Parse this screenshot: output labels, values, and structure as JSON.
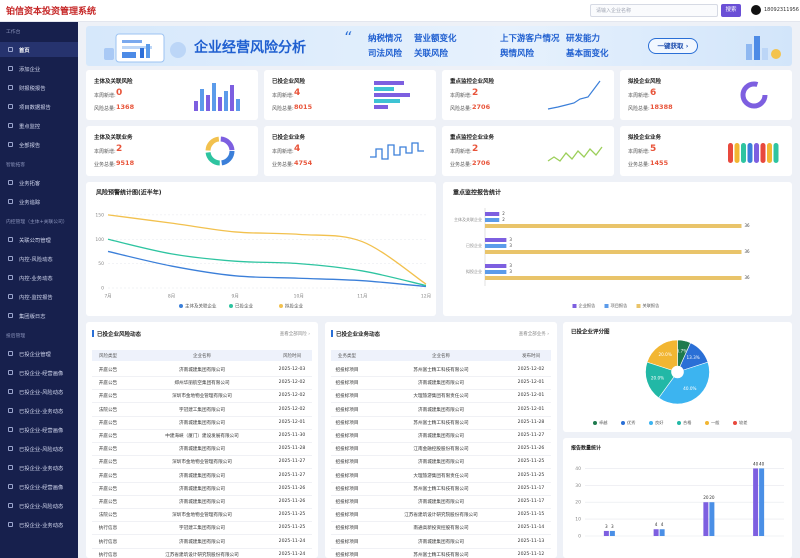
{
  "header": {
    "title": "铂信资本投资管理系统",
    "search_placeholder": "请输入企业名称",
    "search_button": "搜索",
    "phone": "18092311956"
  },
  "sidebar": {
    "sections": [
      {
        "title": "工作台",
        "items": [
          "首页",
          "添加企业",
          "财报税报告",
          "项目数据报告",
          "重点监控",
          "全部报告"
        ]
      },
      {
        "title": "智能拓客",
        "items": [
          "业务拓客",
          "业务追踪"
        ]
      },
      {
        "title": "内控管理（主体+关联公司）",
        "items": [
          "关联公司管理",
          "内控-风险动态",
          "内控-业务动态",
          "内控-监控报告",
          "集团版日志"
        ]
      },
      {
        "title": "投后管理",
        "items": [
          "已投企业管理",
          "已投企业-经营画像",
          "已投企业-风险动态",
          "已投企业-业务动态",
          "已投企业-经营画像",
          "已投企业-风险动态",
          "已投企业-业务动态",
          "已投企业-经营画像",
          "已投企业-风险动态",
          "已投企业-业务动态"
        ]
      }
    ]
  },
  "banner": {
    "title": "企业经营风险分析",
    "keywords": [
      "纳税情况",
      "营业额变化",
      "上下游客户情况",
      "研发能力",
      "司法风险",
      "关联风险",
      "舆情风险",
      "基本面变化"
    ],
    "button": "一键获取 ›"
  },
  "kpi_cards": [
    {
      "title": "主体及关联风险",
      "new_label": "本周新增:",
      "new_value": 0,
      "total_label": "风险总量:",
      "total_value": 1368
    },
    {
      "title": "已投企业风险",
      "new_label": "本周新增:",
      "new_value": 4,
      "total_label": "风险总量:",
      "total_value": 8015
    },
    {
      "title": "重点监控企业风险",
      "new_label": "本周新增:",
      "new_value": 2,
      "total_label": "风险总量:",
      "total_value": 2706
    },
    {
      "title": "拟投企业风险",
      "new_label": "本周新增:",
      "new_value": 6,
      "total_label": "风险总量:",
      "total_value": 18388
    },
    {
      "title": "主体及关联业务",
      "new_label": "本周新增:",
      "new_value": 2,
      "total_label": "业务总量:",
      "total_value": 9518
    },
    {
      "title": "已投企业业务",
      "new_label": "本周新增:",
      "new_value": 4,
      "total_label": "业务总量:",
      "total_value": 4754
    },
    {
      "title": "重点监控企业业务",
      "new_label": "本周新增:",
      "new_value": 2,
      "total_label": "业务总量:",
      "total_value": 2706
    },
    {
      "title": "拟投企业业务",
      "new_label": "本周新增:",
      "new_value": 5,
      "total_label": "业务总量:",
      "total_value": 1455
    }
  ],
  "tables": [
    {
      "title": "已投企业风险动态",
      "link": "查看全部风险 ›",
      "columns": [
        "风险类型",
        "企业名称",
        "风险时间"
      ],
      "rows": [
        [
          "开庭公告",
          "济南城建集团有限公司",
          "2025-12-03"
        ],
        [
          "开庭公告",
          "郑州华丽航空集团有限公司",
          "2025-12-02"
        ],
        [
          "开庭公告",
          "深圳市金地物业管理有限公司",
          "2025-12-02"
        ],
        [
          "法院公告",
          "宇冠建工集团有限公司",
          "2025-12-02"
        ],
        [
          "开庭公告",
          "济南城建集团有限公司",
          "2025-12-01"
        ],
        [
          "开庭公告",
          "中建海峡（厦门）建设发展有限公司",
          "2025-11-30"
        ],
        [
          "开庭公告",
          "济南城建集团有限公司",
          "2025-11-28"
        ],
        [
          "开庭公告",
          "深圳市金地物业管理有限公司",
          "2025-11-27"
        ],
        [
          "开庭公告",
          "济南城建集团有限公司",
          "2025-11-27"
        ],
        [
          "开庭公告",
          "济南城建集团有限公司",
          "2025-11-26"
        ],
        [
          "开庭公告",
          "济南城建集团有限公司",
          "2025-11-26"
        ],
        [
          "法院公告",
          "深圳市金地物业管理有限公司",
          "2025-11-25"
        ],
        [
          "执行信息",
          "宇冠建工集团有限公司",
          "2025-11-25"
        ],
        [
          "执行信息",
          "济南城建集团有限公司",
          "2025-11-24"
        ],
        [
          "执行信息",
          "江苏省建筑设计研究院股份有限公司",
          "2025-11-24"
        ]
      ]
    },
    {
      "title": "已投企业业务动态",
      "link": "查看全部业务 ›",
      "columns": [
        "业务类型",
        "企业名称",
        "发布时间"
      ],
      "rows": [
        [
          "招投标项目",
          "苏州富士精工科技有限公司",
          "2025-12-02"
        ],
        [
          "招投标项目",
          "济南城建集团有限公司",
          "2025-12-01"
        ],
        [
          "招投标项目",
          "大理旅游集团有限责任公司",
          "2025-12-01"
        ],
        [
          "招投标项目",
          "济南城建集团有限公司",
          "2025-12-01"
        ],
        [
          "招投标项目",
          "苏州富士精工科技有限公司",
          "2025-11-28"
        ],
        [
          "招投标项目",
          "济南城建集团有限公司",
          "2025-11-27"
        ],
        [
          "招投标项目",
          "江南金融控股股份有限公司",
          "2025-11-26"
        ],
        [
          "招投标项目",
          "济南城建集团有限公司",
          "2025-11-25"
        ],
        [
          "招投标项目",
          "大理旅游集团有限责任公司",
          "2025-11-25"
        ],
        [
          "招投标项目",
          "苏州富士精工科技有限公司",
          "2025-11-17"
        ],
        [
          "招投标项目",
          "济南城建集团有限公司",
          "2025-11-17"
        ],
        [
          "招投标项目",
          "江苏省建筑设计研究院股份有限公司",
          "2025-11-15"
        ],
        [
          "招投标项目",
          "南通高新投资控股有限公司",
          "2025-11-14"
        ],
        [
          "招投标项目",
          "济南城建集团有限公司",
          "2025-11-13"
        ],
        [
          "招投标项目",
          "苏州富士精工科技有限公司",
          "2025-11-12"
        ]
      ]
    }
  ],
  "chart_data": [
    {
      "type": "line",
      "title": "风险预警统计图(近半年)",
      "categories": [
        "7月",
        "8月",
        "9月",
        "10月",
        "11月",
        "12月"
      ],
      "ylim": [
        0,
        160
      ],
      "yticks": [
        0,
        50,
        100,
        150
      ],
      "grid": true,
      "series": [
        {
          "name": "主体及关联企业",
          "color": "#3b7fd9",
          "values": [
            75,
            45,
            25,
            20,
            15,
            3
          ]
        },
        {
          "name": "已投企业",
          "color": "#2ec4a0",
          "values": [
            100,
            70,
            55,
            50,
            35,
            5
          ]
        },
        {
          "name": "拟投企业",
          "color": "#f2c14e",
          "values": [
            150,
            133,
            115,
            110,
            95,
            8
          ]
        }
      ]
    },
    {
      "type": "hbar",
      "title": "重点监控报告统计",
      "categories": [
        "主体及关联企业",
        "已投企业",
        "拟投企业"
      ],
      "xlim": [
        0,
        40
      ],
      "series": [
        {
          "name": "企业报告",
          "color": "#7d5fe0",
          "values": [
            2,
            3,
            3
          ]
        },
        {
          "name": "项目报告",
          "color": "#5b9bea",
          "values": [
            2,
            3,
            3
          ]
        },
        {
          "name": "关联报告",
          "color": "#e9c46a",
          "values": [
            36,
            36,
            36
          ]
        }
      ]
    },
    {
      "type": "pie",
      "title": "已投企业评分图",
      "categories": [
        "卓越",
        "优秀",
        "良好",
        "合格",
        "一般",
        "较差"
      ],
      "values": [
        6.7,
        13.3,
        40,
        20,
        20,
        0
      ],
      "value_labels": [
        "6.7%",
        "13.3%",
        "40.0%",
        "20.0%",
        "20.0%",
        null
      ],
      "colors": [
        "#1e7a4e",
        "#2a6fd6",
        "#3cb4f0",
        "#22b8a6",
        "#f2b632",
        "#e8493d"
      ]
    },
    {
      "type": "bar",
      "title": "报告数量统计",
      "categories": [
        null,
        null,
        null,
        null
      ],
      "ylim": [
        0,
        45
      ],
      "yticks": [
        0,
        10,
        20,
        30,
        40
      ],
      "grid": true,
      "series": [
        {
          "color": "#7d5fe0",
          "values": [
            3,
            4,
            20,
            40
          ]
        },
        {
          "color": "#4a8fe6",
          "values": [
            3,
            4,
            20,
            40
          ]
        }
      ]
    }
  ]
}
